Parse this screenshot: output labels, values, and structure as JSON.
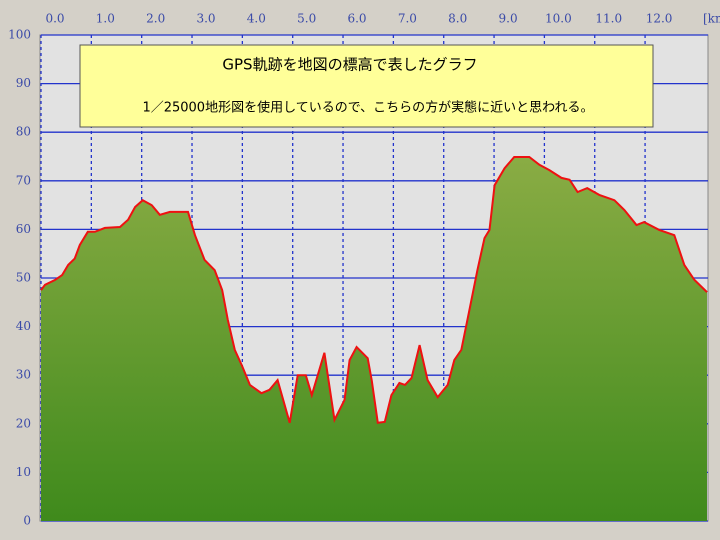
{
  "chart_data": {
    "type": "area",
    "title": "GPS軌跡を地図の標高で表したグラフ",
    "subtitle": "1／25000地形図を使用しているので、こちらの方が実態に近いと思われる。",
    "x_label": "[km",
    "x": [
      0,
      0.08,
      0.28,
      0.42,
      0.54,
      0.67,
      0.77,
      0.93,
      1.07,
      1.27,
      1.57,
      1.73,
      1.87,
      2.02,
      2.2,
      2.36,
      2.56,
      2.92,
      3.06,
      3.25,
      3.45,
      3.6,
      3.71,
      3.85,
      3.99,
      4.15,
      4.38,
      4.54,
      4.7,
      4.94,
      5.1,
      5.26,
      5.38,
      5.63,
      5.83,
      6.03,
      6.13,
      6.27,
      6.49,
      6.57,
      6.69,
      6.83,
      6.96,
      7.12,
      7.23,
      7.36,
      7.52,
      7.68,
      7.88,
      8.08,
      8.21,
      8.35,
      8.51,
      8.67,
      8.81,
      8.91,
      9.01,
      9.21,
      9.4,
      9.7,
      9.9,
      10.1,
      10.34,
      10.5,
      10.66,
      10.85,
      11.09,
      11.39,
      11.59,
      11.83,
      11.98,
      12.28,
      12.58,
      12.78,
      12.98,
      13.23
    ],
    "values": [
      47.5,
      48.6,
      49.6,
      50.6,
      52.7,
      54,
      56.8,
      59.5,
      59.5,
      60.3,
      60.5,
      62,
      64.6,
      66,
      65,
      63,
      63.6,
      63.6,
      58.8,
      53.7,
      51.6,
      47.5,
      41.4,
      35.2,
      32,
      28,
      26.3,
      27,
      29,
      20.2,
      30,
      30,
      25.9,
      34.6,
      20.8,
      24.9,
      33.1,
      35.8,
      33.5,
      29,
      20.2,
      20.4,
      25.9,
      28.4,
      28,
      29.4,
      36.2,
      29,
      25.5,
      28,
      33.1,
      35.2,
      43.4,
      51.6,
      58.2,
      59.9,
      69.1,
      72.6,
      74.9,
      74.9,
      73.3,
      72.2,
      70.6,
      70.2,
      67.7,
      68.5,
      67.1,
      66,
      64,
      60.9,
      61.5,
      59.9,
      58.8,
      52.7,
      49.6,
      47.1
    ],
    "line_color": "#ee1111",
    "fill_top": "#8aac44",
    "fill_bottom": "#3f8a1c",
    "xlim": [
      0,
      13.25
    ],
    "ylim": [
      0,
      100
    ],
    "xticks": [
      {
        "value": 0,
        "label": "0.0"
      },
      {
        "value": 1,
        "label": "1.0"
      },
      {
        "value": 2,
        "label": "2.0"
      },
      {
        "value": 3,
        "label": "3.0"
      },
      {
        "value": 4,
        "label": "4.0"
      },
      {
        "value": 5,
        "label": "5.0"
      },
      {
        "value": 6,
        "label": "6.0"
      },
      {
        "value": 7,
        "label": "7.0"
      },
      {
        "value": 8,
        "label": "8.0"
      },
      {
        "value": 9,
        "label": "9.0"
      },
      {
        "value": 10,
        "label": "10.0"
      },
      {
        "value": 11,
        "label": "11.0"
      },
      {
        "value": 12,
        "label": "12.0"
      }
    ],
    "yticks": [
      0,
      10,
      20,
      30,
      40,
      50,
      60,
      70,
      80,
      90,
      100
    ],
    "grid": true
  }
}
